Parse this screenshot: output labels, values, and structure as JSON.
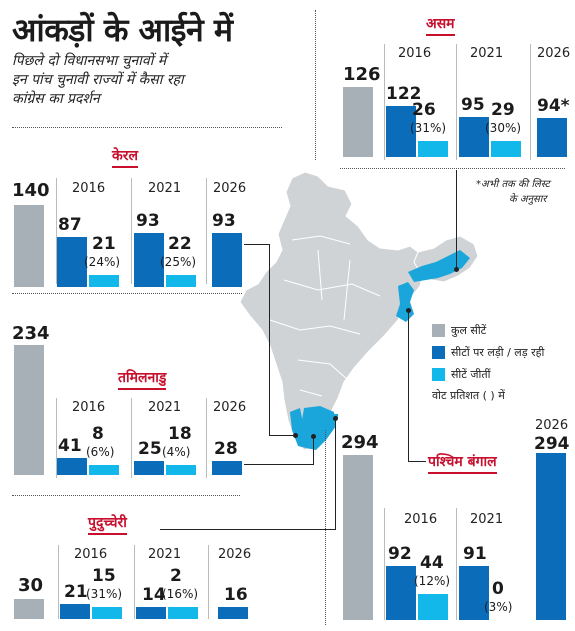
{
  "header": {
    "title": "आंकड़ों के आईने में",
    "subtitle_lines": [
      "पिछले दो विधानसभा चुनावों में",
      "इन पांच चुनावी राज्यों में कैसा रहा",
      "कांग्रेस का प्रदर्शन"
    ]
  },
  "legend": {
    "items": [
      {
        "label": "कुल सीटें",
        "color": "#a7b0b7"
      },
      {
        "label": "सीटों पर लड़ी / लड़ रही",
        "color": "#0b6cb9"
      },
      {
        "label": "सीटें जीतीं",
        "color": "#12b8ea"
      }
    ],
    "vote_note": "वोट प्रतिशत ( ) में"
  },
  "footnote": {
    "line1": "*अभी तक की लिस्ट",
    "line2": "के अनुसार"
  },
  "colors": {
    "total": "#a7b0b7",
    "contested": "#0b6cb9",
    "won": "#12b8ea",
    "state_label": "#c8102e"
  },
  "chart_data": [
    {
      "type": "bar",
      "state": "असम",
      "total_seats": 126,
      "years": [
        {
          "year": "2016",
          "contested": 122,
          "won": 26,
          "vote_pct": "(31%)"
        },
        {
          "year": "2021",
          "contested": 95,
          "won": 29,
          "vote_pct": "(30%)"
        },
        {
          "year": "2026",
          "contested": 94,
          "contested_label": "94*"
        }
      ]
    },
    {
      "type": "bar",
      "state": "केरल",
      "total_seats": 140,
      "years": [
        {
          "year": "2016",
          "contested": 87,
          "won": 21,
          "vote_pct": "(24%)"
        },
        {
          "year": "2021",
          "contested": 93,
          "won": 22,
          "vote_pct": "(25%)"
        },
        {
          "year": "2026",
          "contested": 93
        }
      ]
    },
    {
      "type": "bar",
      "state": "तमिलनाडु",
      "total_seats": 234,
      "years": [
        {
          "year": "2016",
          "contested": 41,
          "won": 8,
          "vote_pct": "(6%)"
        },
        {
          "year": "2021",
          "contested": 25,
          "won": 18,
          "vote_pct": "(4%)"
        },
        {
          "year": "2026",
          "contested": 28
        }
      ]
    },
    {
      "type": "bar",
      "state": "पुदुच्चेरी",
      "total_seats": 30,
      "years": [
        {
          "year": "2016",
          "contested": 21,
          "won": 15,
          "vote_pct": "(31%)"
        },
        {
          "year": "2021",
          "contested": 14,
          "won": 2,
          "vote_pct": "(16%)"
        },
        {
          "year": "2026",
          "contested": 16
        }
      ]
    },
    {
      "type": "bar",
      "state": "पश्चिम बंगाल",
      "total_seats": 294,
      "years": [
        {
          "year": "2016",
          "contested": 92,
          "won": 44,
          "vote_pct": "(12%)"
        },
        {
          "year": "2021",
          "contested": 91,
          "won": 0,
          "vote_pct": "(3%)"
        },
        {
          "year": "2026",
          "contested": 294
        }
      ]
    }
  ]
}
